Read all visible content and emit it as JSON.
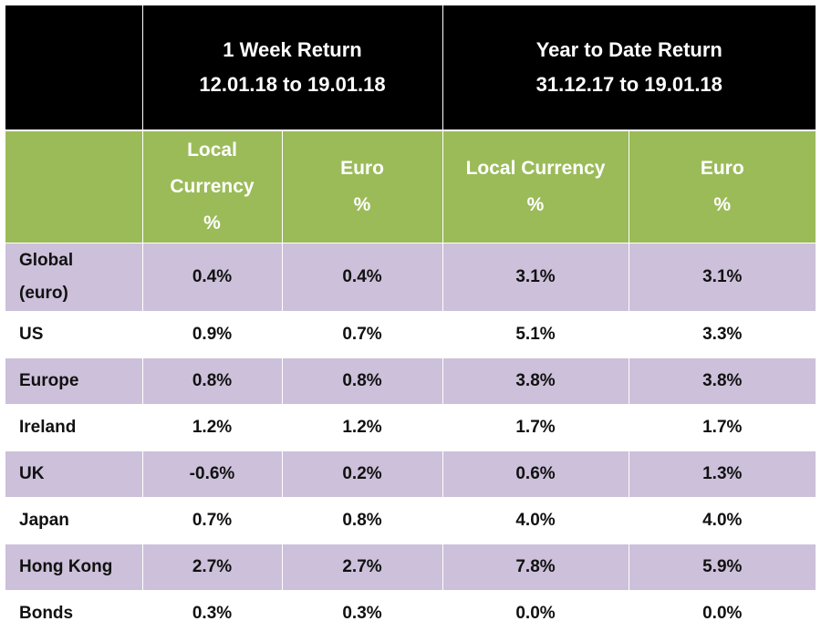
{
  "colors": {
    "header_black": "#000000",
    "header_green": "#9bbb59",
    "row_shade": "#ccc0da",
    "header_text": "#ffffff"
  },
  "header": {
    "week": {
      "title": "1 Week Return",
      "dates": "12.01.18 to 19.01.18"
    },
    "ytd": {
      "title": "Year to Date Return",
      "dates": "31.12.17 to 19.01.18"
    }
  },
  "subheader": {
    "week_local": [
      "Local",
      "Currency",
      "%"
    ],
    "week_euro": [
      "Euro",
      "%"
    ],
    "ytd_local": [
      "Local Currency",
      "%"
    ],
    "ytd_euro": [
      "Euro",
      "%"
    ]
  },
  "chart_data": {
    "type": "table",
    "columns": [
      "1 Week Return Local Currency %",
      "1 Week Return Euro %",
      "Year to Date Return Local Currency %",
      "Year to Date Return Euro %"
    ],
    "rows": [
      {
        "label": [
          "Global",
          "(euro)"
        ],
        "values": [
          "0.4%",
          "0.4%",
          "3.1%",
          "3.1%"
        ],
        "shaded": true
      },
      {
        "label": [
          "US"
        ],
        "values": [
          "0.9%",
          "0.7%",
          "5.1%",
          "3.3%"
        ],
        "shaded": false
      },
      {
        "label": [
          "Europe"
        ],
        "values": [
          "0.8%",
          "0.8%",
          "3.8%",
          "3.8%"
        ],
        "shaded": true
      },
      {
        "label": [
          "Ireland"
        ],
        "values": [
          "1.2%",
          "1.2%",
          "1.7%",
          "1.7%"
        ],
        "shaded": false
      },
      {
        "label": [
          "UK"
        ],
        "values": [
          "-0.6%",
          "0.2%",
          "0.6%",
          "1.3%"
        ],
        "shaded": true
      },
      {
        "label": [
          "Japan"
        ],
        "values": [
          "0.7%",
          "0.8%",
          "4.0%",
          "4.0%"
        ],
        "shaded": false
      },
      {
        "label": [
          "Hong Kong"
        ],
        "values": [
          "2.7%",
          "2.7%",
          "7.8%",
          "5.9%"
        ],
        "shaded": true
      },
      {
        "label": [
          "Bonds"
        ],
        "values": [
          "0.3%",
          "0.3%",
          "0.0%",
          "0.0%"
        ],
        "shaded": false
      }
    ]
  }
}
